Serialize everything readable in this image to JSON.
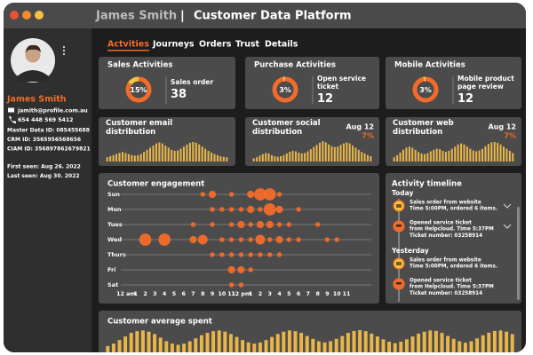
{
  "header": {
    "name": "James Smith",
    "separator": "|",
    "app": "Customer Data Platform"
  },
  "profile": {
    "name": "James Smith",
    "email": "jamith@profile.com.au",
    "phone": "654 448 569 5412",
    "ids": [
      "Master Data ID: 085455688",
      "CRM ID: 3565956568656",
      "CIAM ID: 356897862679821"
    ],
    "seen": [
      "First seen: Aug 26. 2022",
      "Last seen: Aug 30. 2022"
    ]
  },
  "tabs": {
    "items": [
      "Actvities",
      "Journeys",
      "Orders",
      "Trust",
      "Details"
    ],
    "active": 0
  },
  "activity_cards": [
    {
      "title": "Sales Activities",
      "percent": 15,
      "percent_label": "15%",
      "label": "Sales order",
      "value": 38
    },
    {
      "title": "Purchase Activities",
      "percent": 3,
      "percent_label": "3%",
      "label": "Open service ticket",
      "value": 12
    },
    {
      "title": "Mobile Activities",
      "percent": 3,
      "percent_label": "3%",
      "label": "Mobile product page review",
      "value": 12
    }
  ],
  "distributions": [
    {
      "title": "Customer email distribution",
      "values": [
        20,
        25,
        30,
        35,
        40,
        45,
        40,
        35,
        30,
        28,
        30,
        35,
        45,
        55,
        65,
        75,
        85,
        90,
        85,
        75,
        65,
        55,
        50,
        52,
        60,
        70,
        80,
        88,
        92,
        88,
        80,
        70,
        60,
        50,
        42,
        35,
        30,
        25,
        22,
        20
      ]
    },
    {
      "title": "Customer social distribution",
      "date": "Aug 12",
      "change": "7%",
      "values": [
        15,
        20,
        28,
        35,
        40,
        38,
        30,
        25,
        22,
        25,
        30,
        38,
        45,
        50,
        48,
        42,
        38,
        40,
        48,
        58,
        68,
        78,
        88,
        95,
        90,
        80,
        72,
        68,
        70,
        78,
        85,
        90,
        85,
        75,
        65,
        55,
        45,
        38,
        30,
        25
      ]
    },
    {
      "title": "Customer web distribution",
      "date": "Aug 12",
      "change": "7%",
      "values": [
        20,
        30,
        42,
        55,
        65,
        70,
        65,
        55,
        45,
        38,
        35,
        40,
        48,
        55,
        60,
        58,
        50,
        45,
        50,
        60,
        70,
        80,
        85,
        80,
        70,
        60,
        52,
        48,
        52,
        60,
        72,
        82,
        90,
        92,
        88,
        80,
        70,
        60,
        50,
        40
      ]
    }
  ],
  "engagement": {
    "type": "bubble",
    "title": "Customer engagement",
    "xlim": [
      0,
      23
    ],
    "xticks": [
      {
        "value": 0,
        "label": "12 am"
      },
      1,
      2,
      3,
      4,
      5,
      6,
      7,
      8,
      9,
      10,
      11,
      {
        "value": 12,
        "label": "12 pm"
      },
      {
        "value": 13,
        "label": "1"
      },
      {
        "value": 14,
        "label": "2"
      },
      {
        "value": 15,
        "label": "3"
      },
      {
        "value": 16,
        "label": "4"
      },
      {
        "value": 17,
        "label": "5"
      },
      {
        "value": 18,
        "label": "6"
      },
      {
        "value": 19,
        "label": "7"
      },
      {
        "value": 20,
        "label": "8"
      },
      {
        "value": 21,
        "label": "9"
      },
      {
        "value": 22,
        "label": "10"
      },
      {
        "value": 23,
        "label": "11"
      }
    ],
    "series": [
      {
        "name": "Sun",
        "x": [
          8,
          9,
          11,
          13,
          14,
          15,
          16
        ],
        "sizes": [
          1,
          2,
          1,
          2,
          4,
          4,
          1
        ]
      },
      {
        "name": "Mon",
        "x": [
          9,
          10,
          11,
          12,
          13,
          14,
          15,
          16,
          18
        ],
        "sizes": [
          1,
          1,
          1,
          1,
          2,
          1,
          4,
          2,
          1
        ]
      },
      {
        "name": "Tues",
        "x": [
          7,
          9,
          11,
          12,
          13,
          14,
          15,
          16,
          17,
          20
        ],
        "sizes": [
          1,
          1,
          1,
          2,
          1,
          2,
          2,
          1,
          1,
          1
        ]
      },
      {
        "name": "Wed",
        "x": [
          2,
          4,
          7,
          8,
          10,
          11,
          12,
          13,
          14,
          15,
          16,
          17,
          18,
          21,
          22
        ],
        "sizes": [
          4,
          4,
          2,
          3,
          1,
          1,
          1,
          1,
          3,
          1,
          2,
          1,
          1,
          1,
          1
        ]
      },
      {
        "name": "Thurs",
        "x": [
          9,
          10,
          11,
          12,
          13,
          14,
          15,
          16
        ],
        "sizes": [
          1,
          1,
          1,
          1,
          1,
          1,
          1,
          1
        ]
      },
      {
        "name": "Fri",
        "x": [
          11,
          12,
          13
        ],
        "sizes": [
          2,
          2,
          1
        ]
      },
      {
        "name": "Sat",
        "x": [
          11,
          12
        ],
        "sizes": [
          1,
          1
        ]
      }
    ]
  },
  "timeline": {
    "title": "Activity timeline",
    "groups": [
      {
        "label": "Today",
        "items": [
          {
            "lines": [
              "Sales order from website",
              "Time 5:00PM, ordered 6 items."
            ]
          },
          {
            "lines": [
              "Opened service ticket",
              "from Helpcloud. Time 5:37PM",
              "Ticket number: 03258914"
            ]
          }
        ]
      },
      {
        "label": "Yesterday",
        "items": [
          {
            "lines": [
              "Sales order from website",
              "Time 5:00PM, ordered 6 items."
            ]
          },
          {
            "lines": [
              "Opened service ticket",
              "from Helpcloud. Time 5:37PM",
              "Ticket number: 03258914"
            ]
          }
        ]
      }
    ]
  },
  "spend": {
    "title": "Customer average spent",
    "values": [
      30,
      40,
      55,
      70,
      85,
      92,
      95,
      90,
      80,
      65,
      50,
      40,
      35,
      40,
      50,
      62,
      75,
      85,
      92,
      95,
      90,
      80,
      68,
      55,
      45,
      40,
      45,
      55,
      68,
      80,
      90,
      95,
      92,
      85,
      72,
      60,
      50,
      45,
      50,
      60,
      72,
      85,
      93,
      96,
      92,
      82,
      70,
      58,
      48,
      42,
      48,
      58,
      70,
      82,
      90,
      95,
      93,
      85,
      72,
      60,
      50,
      44,
      50,
      62,
      75,
      86,
      93,
      95,
      90,
      80
    ]
  }
}
